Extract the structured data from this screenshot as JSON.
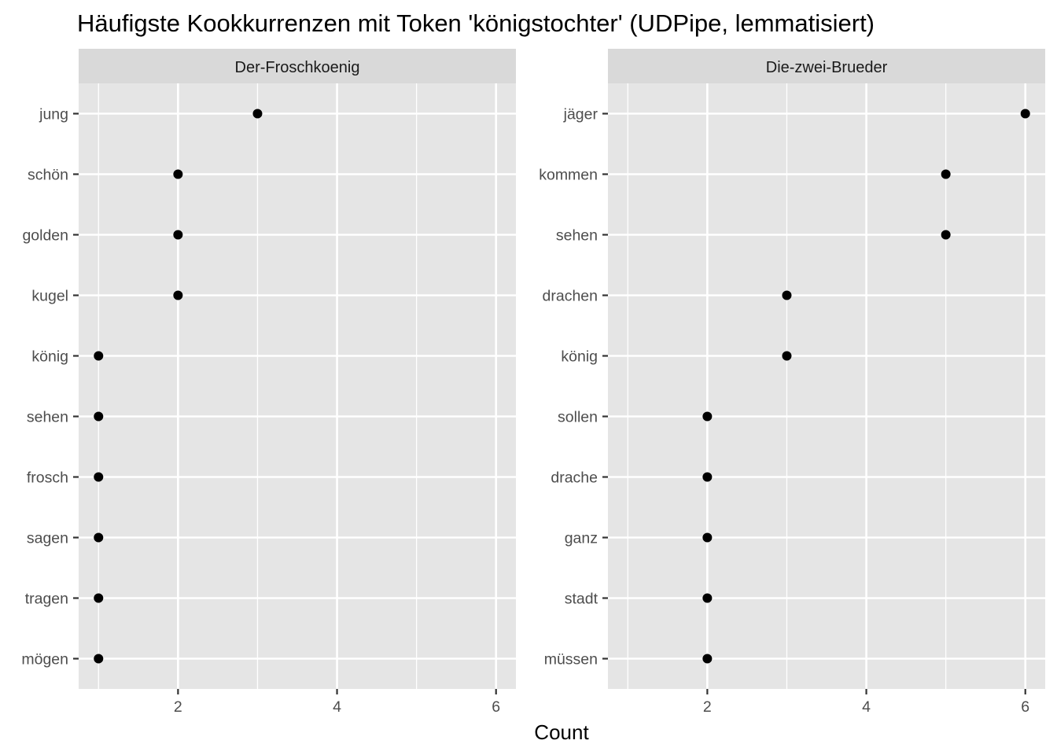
{
  "chart_data": {
    "type": "scatter",
    "title": "Häufigste Kookkurrenzen mit Token 'königstochter' (UDPipe, lemmatisiert)",
    "xlabel": "Count",
    "ylabel": "",
    "xlim": [
      0.75,
      6.25
    ],
    "xticks": [
      2,
      4,
      6
    ],
    "grid": true,
    "facets": [
      {
        "name": "Der-Froschkoenig",
        "categories": [
          "jung",
          "schön",
          "golden",
          "kugel",
          "könig",
          "sehen",
          "frosch",
          "sagen",
          "tragen",
          "mögen"
        ],
        "values": [
          3,
          2,
          2,
          2,
          1,
          1,
          1,
          1,
          1,
          1
        ]
      },
      {
        "name": "Die-zwei-Brueder",
        "categories": [
          "jäger",
          "kommen",
          "sehen",
          "drachen",
          "könig",
          "sollen",
          "drache",
          "ganz",
          "stadt",
          "müssen"
        ],
        "values": [
          6,
          5,
          5,
          3,
          3,
          2,
          2,
          2,
          2,
          2
        ]
      }
    ]
  }
}
